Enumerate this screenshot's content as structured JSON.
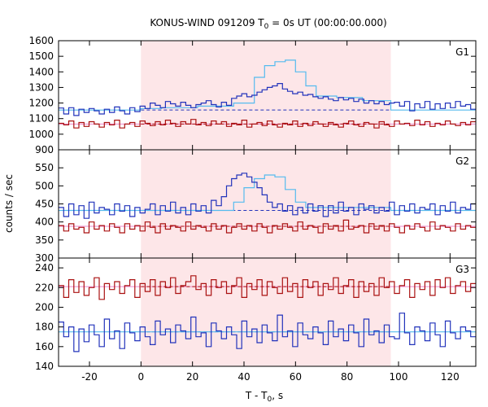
{
  "chart_data": {
    "type": "line",
    "title": "KONUS-WIND 091209 T",
    "title_sub": "0",
    "title_rest": " = 0s UT (00:00:00.000)",
    "xlabel": "T - T",
    "xlabel_sub": "0",
    "xlabel_rest": ", s",
    "ylabel": "counts / sec",
    "xlim": [
      -32,
      130
    ],
    "xticks": [
      -20,
      0,
      20,
      40,
      60,
      80,
      100,
      120
    ],
    "highlight_interval": [
      0,
      97
    ],
    "colors": {
      "highlight": "#fde6e8",
      "blue": "#2233bb",
      "red": "#aa1111",
      "light_blue": "#55bbee",
      "pink": "#ee88cc"
    },
    "panels": [
      {
        "label": "G1",
        "ylim": [
          900,
          1600
        ],
        "yticks": [
          900,
          1000,
          1100,
          1200,
          1300,
          1400,
          1500,
          1600
        ],
        "blue_baseline": 1155,
        "red_baseline": 1065,
        "blue_series": [
          1168,
          1130,
          1170,
          1120,
          1160,
          1140,
          1165,
          1150,
          1130,
          1160,
          1140,
          1175,
          1150,
          1130,
          1170,
          1145,
          1180,
          1165,
          1200,
          1185,
          1170,
          1210,
          1195,
          1180,
          1205,
          1185,
          1170,
          1190,
          1200,
          1215,
          1190,
          1175,
          1205,
          1185,
          1230,
          1245,
          1260,
          1240,
          1250,
          1270,
          1285,
          1300,
          1310,
          1325,
          1290,
          1275,
          1260,
          1270,
          1250,
          1255,
          1240,
          1230,
          1240,
          1225,
          1215,
          1235,
          1220,
          1230,
          1210,
          1225,
          1200,
          1215,
          1195,
          1210,
          1190,
          1200,
          1205,
          1180,
          1210,
          1150,
          1195,
          1170,
          1210,
          1160,
          1195,
          1165,
          1200,
          1170,
          1210,
          1180,
          1190,
          1160
        ],
        "red_series": [
          1070,
          1060,
          1085,
          1040,
          1075,
          1050,
          1080,
          1065,
          1045,
          1075,
          1060,
          1090,
          1040,
          1065,
          1075,
          1050,
          1085,
          1070,
          1055,
          1080,
          1060,
          1090,
          1070,
          1050,
          1080,
          1065,
          1095,
          1060,
          1075,
          1055,
          1085,
          1065,
          1080,
          1050,
          1070,
          1060,
          1090,
          1045,
          1065,
          1075,
          1055,
          1085,
          1060,
          1045,
          1070,
          1060,
          1085,
          1050,
          1070,
          1055,
          1080,
          1065,
          1050,
          1075,
          1060,
          1045,
          1070,
          1085,
          1060,
          1050,
          1075,
          1065,
          1040,
          1080,
          1060,
          1050,
          1085,
          1065,
          1070,
          1055,
          1090,
          1060,
          1080,
          1050,
          1070,
          1060,
          1085,
          1065,
          1055,
          1075,
          1060,
          1080
        ],
        "fit_segments": [
          {
            "x": [
              -32,
              0
            ],
            "y": [
              1155,
              1155
            ]
          },
          {
            "x": [
              0,
              8
            ],
            "y": [
              1165,
              1165
            ]
          },
          {
            "x": [
              8,
              22
            ],
            "y": [
              1170,
              1170
            ]
          },
          {
            "x": [
              22,
              36
            ],
            "y": [
              1180,
              1180
            ]
          },
          {
            "x": [
              36,
              44
            ],
            "y": [
              1200,
              1200
            ]
          },
          {
            "x": [
              44,
              48
            ],
            "y": [
              1365,
              1365
            ]
          },
          {
            "x": [
              48,
              52
            ],
            "y": [
              1440,
              1440
            ]
          },
          {
            "x": [
              52,
              56
            ],
            "y": [
              1465,
              1465
            ]
          },
          {
            "x": [
              56,
              60
            ],
            "y": [
              1475,
              1475
            ]
          },
          {
            "x": [
              60,
              64
            ],
            "y": [
              1400,
              1400
            ]
          },
          {
            "x": [
              64,
              68
            ],
            "y": [
              1310,
              1310
            ]
          },
          {
            "x": [
              68,
              76
            ],
            "y": [
              1245,
              1245
            ]
          },
          {
            "x": [
              76,
              86
            ],
            "y": [
              1235,
              1235
            ]
          },
          {
            "x": [
              86,
              97
            ],
            "y": [
              1215,
              1215
            ]
          },
          {
            "x": [
              97,
              130
            ],
            "y": [
              1155,
              1155
            ]
          }
        ]
      },
      {
        "label": "G2",
        "ylim": [
          300,
          600
        ],
        "yticks": [
          300,
          350,
          400,
          450,
          500,
          550
        ],
        "blue_baseline": 432,
        "red_baseline": 388,
        "blue_series": [
          440,
          415,
          450,
          420,
          445,
          410,
          455,
          425,
          440,
          435,
          420,
          450,
          430,
          445,
          415,
          440,
          425,
          435,
          450,
          420,
          445,
          430,
          455,
          425,
          440,
          420,
          450,
          430,
          445,
          425,
          460,
          445,
          470,
          500,
          520,
          530,
          535,
          525,
          510,
          495,
          475,
          455,
          440,
          450,
          430,
          445,
          420,
          440,
          425,
          450,
          430,
          445,
          415,
          445,
          425,
          455,
          430,
          440,
          420,
          450,
          435,
          445,
          425,
          440,
          430,
          455,
          420,
          445,
          430,
          450,
          425,
          440,
          435,
          450,
          420,
          445,
          430,
          455,
          425,
          440,
          435,
          450
        ],
        "red_series": [
          390,
          375,
          395,
          380,
          385,
          370,
          400,
          380,
          390,
          375,
          395,
          385,
          370,
          395,
          380,
          390,
          375,
          400,
          385,
          370,
          395,
          380,
          390,
          385,
          375,
          400,
          380,
          390,
          385,
          375,
          395,
          380,
          390,
          370,
          385,
          395,
          380,
          390,
          375,
          395,
          385,
          370,
          390,
          380,
          395,
          385,
          375,
          400,
          380,
          390,
          385,
          370,
          395,
          380,
          390,
          375,
          405,
          380,
          385,
          390,
          370,
          395,
          380,
          390,
          375,
          395,
          385,
          370,
          390,
          380,
          395,
          385,
          375,
          400,
          380,
          390,
          385,
          375,
          395,
          380,
          390,
          385
        ],
        "fit_segments": [
          {
            "x": [
              -32,
              0
            ],
            "y": [
              432,
              432
            ]
          },
          {
            "x": [
              0,
              36
            ],
            "y": [
              432,
              432
            ]
          },
          {
            "x": [
              36,
              40
            ],
            "y": [
              455,
              455
            ]
          },
          {
            "x": [
              40,
              44
            ],
            "y": [
              495,
              495
            ]
          },
          {
            "x": [
              44,
              48
            ],
            "y": [
              520,
              520
            ]
          },
          {
            "x": [
              48,
              52
            ],
            "y": [
              530,
              530
            ]
          },
          {
            "x": [
              52,
              56
            ],
            "y": [
              525,
              525
            ]
          },
          {
            "x": [
              56,
              60
            ],
            "y": [
              490,
              490
            ]
          },
          {
            "x": [
              60,
              64
            ],
            "y": [
              455,
              455
            ]
          },
          {
            "x": [
              64,
              97
            ],
            "y": [
              440,
              440
            ]
          },
          {
            "x": [
              97,
              130
            ],
            "y": [
              432,
              432
            ]
          }
        ]
      },
      {
        "label": "G3",
        "ylim": [
          140,
          250
        ],
        "yticks": [
          140,
          160,
          180,
          200,
          220,
          240
        ],
        "blue_baseline": 175,
        "red_baseline": 221,
        "blue_series": [
          185,
          170,
          180,
          155,
          178,
          165,
          182,
          172,
          160,
          188,
          168,
          176,
          158,
          184,
          174,
          166,
          180,
          170,
          162,
          186,
          172,
          178,
          164,
          182,
          176,
          168,
          190,
          170,
          174,
          160,
          184,
          176,
          168,
          180,
          172,
          158,
          186,
          170,
          178,
          164,
          182,
          174,
          166,
          192,
          170,
          176,
          160,
          184,
          172,
          168,
          180,
          174,
          162,
          186,
          170,
          178,
          166,
          182,
          174,
          160,
          188,
          172,
          176,
          164,
          182,
          170,
          168,
          194,
          174,
          162,
          180,
          176,
          166,
          184,
          172,
          160,
          186,
          174,
          168,
          180,
          176,
          170
        ],
        "red_series": [
          222,
          210,
          228,
          215,
          226,
          212,
          220,
          230,
          208,
          224,
          218,
          226,
          214,
          222,
          228,
          210,
          224,
          216,
          228,
          212,
          226,
          220,
          230,
          214,
          222,
          226,
          232,
          218,
          224,
          212,
          228,
          220,
          226,
          214,
          222,
          230,
          210,
          224,
          218,
          228,
          212,
          226,
          220,
          214,
          230,
          216,
          224,
          210,
          228,
          220,
          226,
          212,
          224,
          218,
          230,
          214,
          222,
          228,
          210,
          226,
          216,
          224,
          212,
          230,
          220,
          226,
          214,
          222,
          228,
          210,
          224,
          218,
          226,
          212,
          228,
          220,
          230,
          214,
          222,
          226,
          216,
          224
        ],
        "fit_segments": [
          {
            "x": [
              -32,
              0
            ],
            "y": [
              175,
              175
            ]
          },
          {
            "x": [
              0,
              97
            ],
            "y": [
              175,
              175
            ]
          },
          {
            "x": [
              97,
              130
            ],
            "y": [
              175,
              175
            ]
          }
        ]
      }
    ]
  }
}
